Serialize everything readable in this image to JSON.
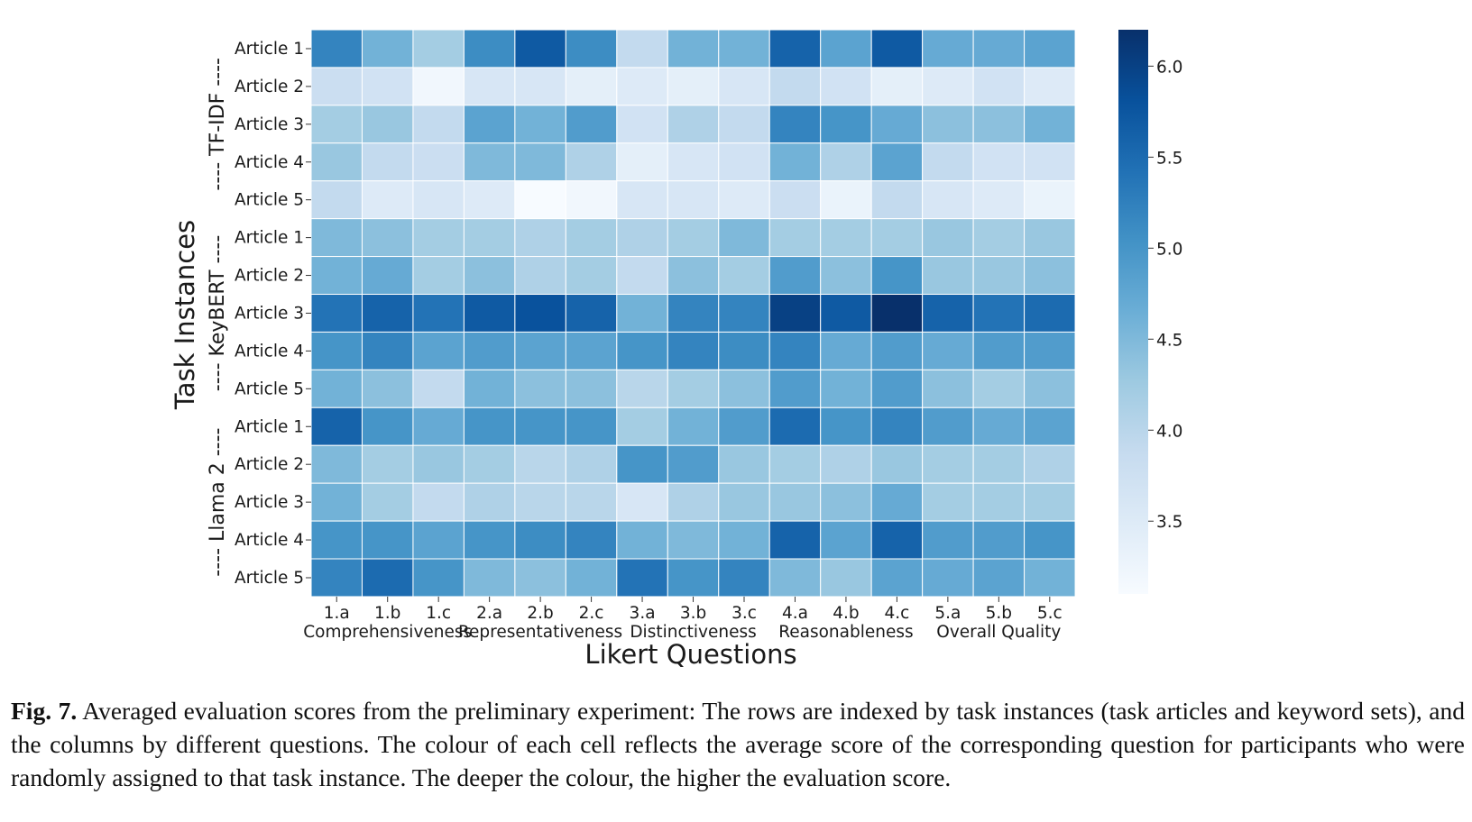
{
  "chart_data": {
    "type": "heatmap",
    "title": "",
    "xlabel": "Likert Questions",
    "ylabel": "Task Instances",
    "x_tick_labels": [
      "1.a",
      "1.b",
      "1.c",
      "2.a",
      "2.b",
      "2.c",
      "3.a",
      "3.b",
      "3.c",
      "4.a",
      "4.b",
      "4.c",
      "5.a",
      "5.b",
      "5.c"
    ],
    "x_groups": [
      {
        "label": "Comprehensiveness",
        "columns": [
          "1.a",
          "1.b",
          "1.c"
        ]
      },
      {
        "label": "Representativeness",
        "columns": [
          "2.a",
          "2.b",
          "2.c"
        ]
      },
      {
        "label": "Distinctiveness",
        "columns": [
          "3.a",
          "3.b",
          "3.c"
        ]
      },
      {
        "label": "Reasonableness",
        "columns": [
          "4.a",
          "4.b",
          "4.c"
        ]
      },
      {
        "label": "Overall Quality",
        "columns": [
          "5.a",
          "5.b",
          "5.c"
        ]
      }
    ],
    "y_groups": [
      {
        "label": "TF-IDF",
        "rows": [
          "Article 1",
          "Article 2",
          "Article 3",
          "Article 4",
          "Article 5"
        ]
      },
      {
        "label": "KeyBERT",
        "rows": [
          "Article 1",
          "Article 2",
          "Article 3",
          "Article 4",
          "Article 5"
        ]
      },
      {
        "label": "Llama 2",
        "rows": [
          "Article 1",
          "Article 2",
          "Article 3",
          "Article 4",
          "Article 5"
        ]
      }
    ],
    "values": [
      [
        5.2,
        4.6,
        4.2,
        5.1,
        5.7,
        5.1,
        3.9,
        4.6,
        4.6,
        5.6,
        4.8,
        5.7,
        4.7,
        4.7,
        4.8
      ],
      [
        3.8,
        3.7,
        3.2,
        3.6,
        3.6,
        3.4,
        3.5,
        3.4,
        3.6,
        3.9,
        3.7,
        3.4,
        3.5,
        3.7,
        3.5
      ],
      [
        4.2,
        4.3,
        3.9,
        4.8,
        4.6,
        4.9,
        3.7,
        4.1,
        3.9,
        5.2,
        5.0,
        4.7,
        4.4,
        4.4,
        4.6
      ],
      [
        4.3,
        3.9,
        3.8,
        4.5,
        4.5,
        4.1,
        3.4,
        3.6,
        3.7,
        4.6,
        4.1,
        4.8,
        3.9,
        3.7,
        3.7
      ],
      [
        3.9,
        3.5,
        3.6,
        3.5,
        3.1,
        3.2,
        3.6,
        3.6,
        3.5,
        3.8,
        3.3,
        3.9,
        3.6,
        3.5,
        3.3
      ],
      [
        4.5,
        4.4,
        4.2,
        4.2,
        4.1,
        4.2,
        4.1,
        4.2,
        4.5,
        4.2,
        4.2,
        4.2,
        4.3,
        4.2,
        4.3
      ],
      [
        4.6,
        4.7,
        4.2,
        4.4,
        4.1,
        4.2,
        3.9,
        4.4,
        4.2,
        4.9,
        4.4,
        5.0,
        4.3,
        4.3,
        4.4
      ],
      [
        5.4,
        5.6,
        5.4,
        5.7,
        5.8,
        5.6,
        4.6,
        5.2,
        5.2,
        6.0,
        5.7,
        6.2,
        5.6,
        5.4,
        5.5
      ],
      [
        5.0,
        5.2,
        4.8,
        4.9,
        4.8,
        4.8,
        5.0,
        5.2,
        5.1,
        5.2,
        4.7,
        4.9,
        4.7,
        4.9,
        4.9
      ],
      [
        4.6,
        4.4,
        3.9,
        4.6,
        4.4,
        4.4,
        4.0,
        4.2,
        4.4,
        4.9,
        4.6,
        4.9,
        4.4,
        4.2,
        4.4
      ],
      [
        5.6,
        5.0,
        4.7,
        5.0,
        5.0,
        5.0,
        4.2,
        4.6,
        4.9,
        5.5,
        5.0,
        5.2,
        4.9,
        4.7,
        4.8
      ],
      [
        4.5,
        4.2,
        4.3,
        4.2,
        4.0,
        4.1,
        5.0,
        4.9,
        4.3,
        4.2,
        4.1,
        4.3,
        4.2,
        4.2,
        4.1
      ],
      [
        4.6,
        4.2,
        3.9,
        4.1,
        4.0,
        4.0,
        3.6,
        4.1,
        4.3,
        4.3,
        4.4,
        4.7,
        4.2,
        4.2,
        4.2
      ],
      [
        5.0,
        5.0,
        4.8,
        5.0,
        5.1,
        5.2,
        4.6,
        4.5,
        4.6,
        5.6,
        4.8,
        5.6,
        4.9,
        4.9,
        5.0
      ],
      [
        5.2,
        5.5,
        5.0,
        4.5,
        4.4,
        4.6,
        5.4,
        5.0,
        5.2,
        4.5,
        4.3,
        4.8,
        4.7,
        4.8,
        4.6
      ]
    ],
    "colorbar": {
      "range": [
        3.1,
        6.2
      ],
      "ticks": [
        3.5,
        4.0,
        4.5,
        5.0,
        5.5,
        6.0
      ],
      "tick_labels": [
        "3.5",
        "4.0",
        "4.5",
        "5.0",
        "5.5",
        "6.0"
      ],
      "colormap": "Blues",
      "low_color": "#f7fbff",
      "high_color": "#08306b"
    },
    "grid": false
  },
  "caption": {
    "label": "Fig. 7.",
    "text": "Averaged evaluation scores from the preliminary experiment: The rows are indexed by task instances (task articles and keyword sets), and the columns by different questions. The colour of each cell reflects the average score of the corresponding question for participants who were randomly assigned to that task instance. The deeper the colour, the higher the evaluation score."
  }
}
